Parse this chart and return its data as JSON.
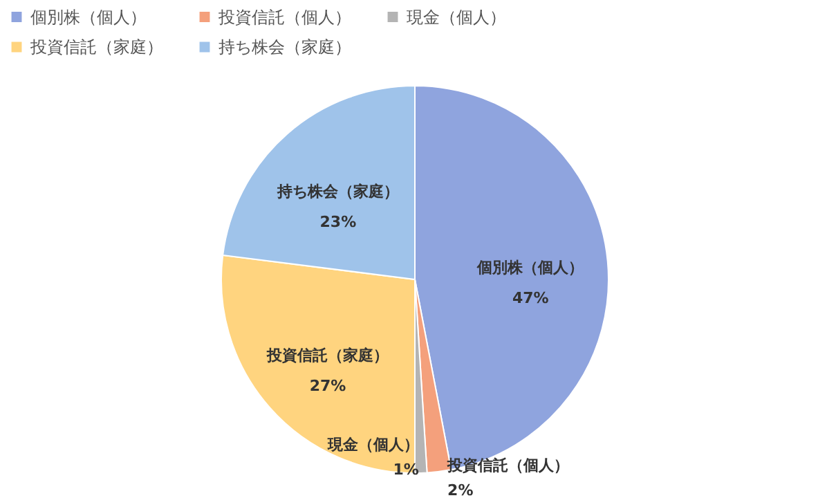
{
  "chart_data": {
    "type": "pie",
    "categories": [
      "個別株（個人）",
      "投資信託（個人）",
      "現金（個人）",
      "投資信託（家庭）",
      "持ち株会（家庭）"
    ],
    "values": [
      47,
      2,
      1,
      27,
      23
    ],
    "value_labels": [
      "47%",
      "2%",
      "1%",
      "27%",
      "23%"
    ],
    "colors": [
      "#8fa4de",
      "#f4a07c",
      "#b4b4b4",
      "#ffd47f",
      "#9fc3ea"
    ],
    "legend": "top left"
  }
}
